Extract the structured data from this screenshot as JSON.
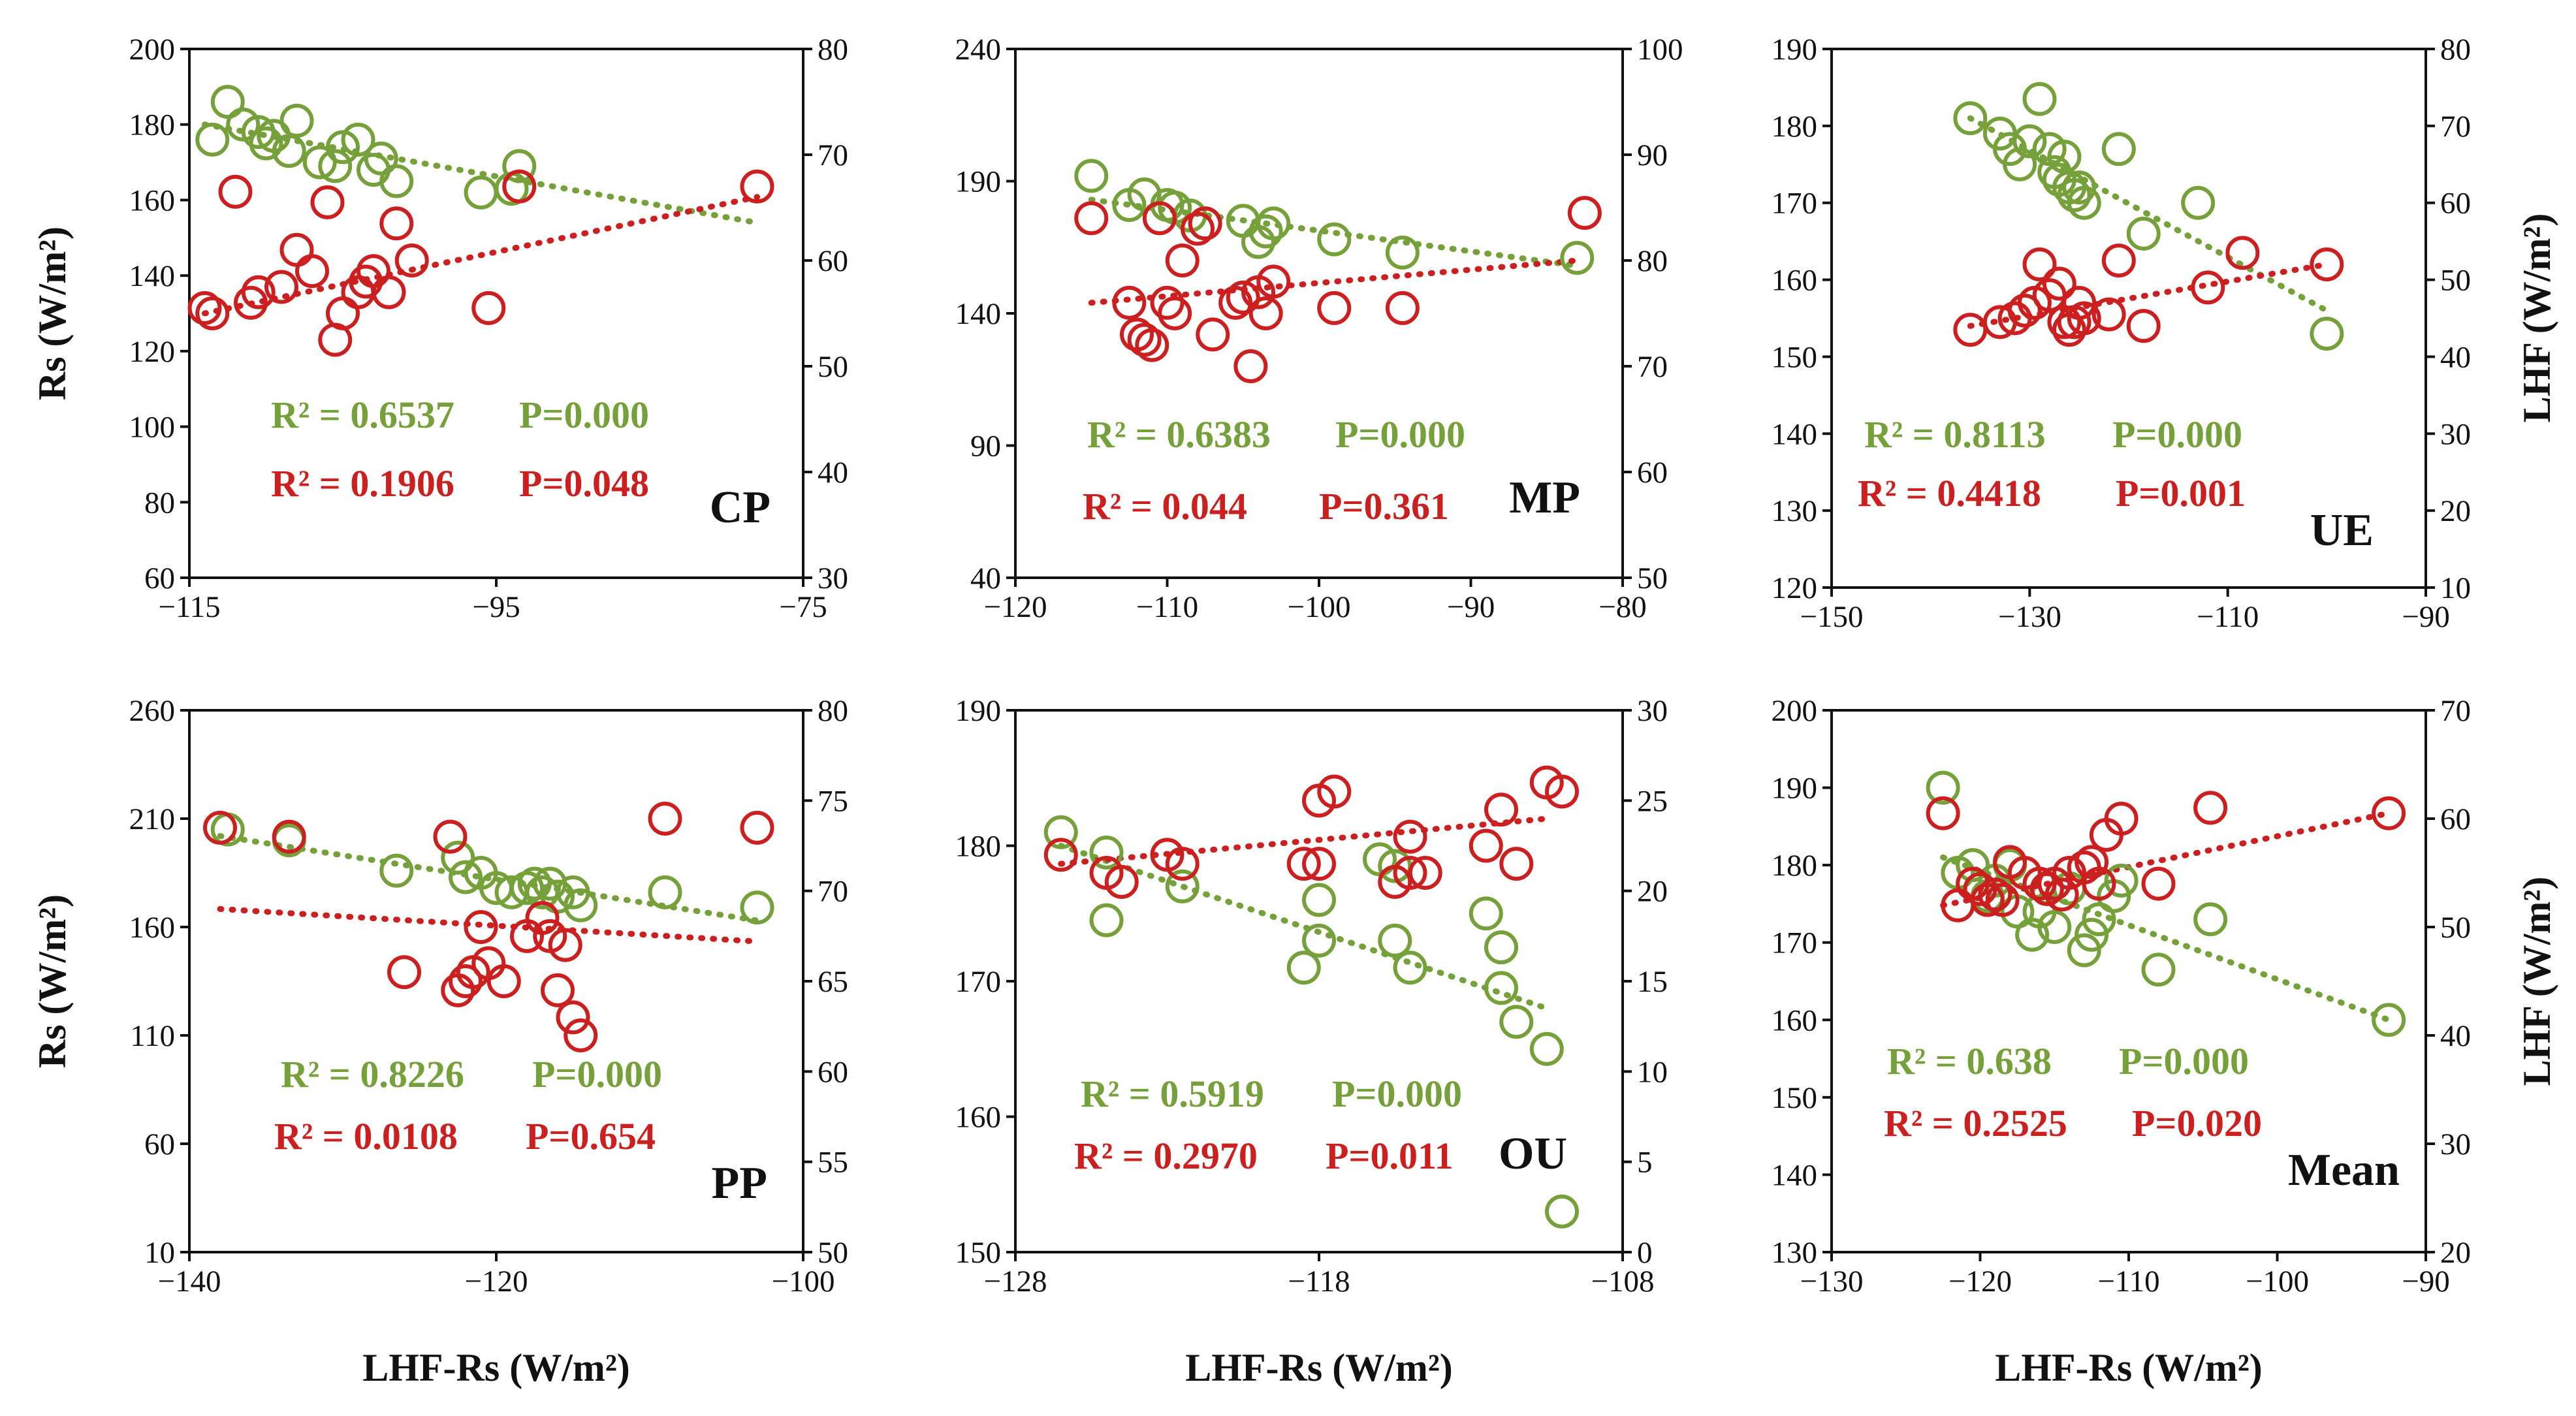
{
  "colors": {
    "green": "#76a039",
    "red": "#cc1f1f",
    "axis": "#111111"
  },
  "axis_titles": {
    "left_y": "Rs (W/m²)",
    "right_y": "LHF (W/m²)",
    "x": "LHF-Rs (W/m²)"
  },
  "chart_data": [
    {
      "type": "scatter",
      "title": "CP",
      "xlabel": "",
      "ylabel": "Rs (W/m²)",
      "y2label": "",
      "xlim": [
        -115,
        -75
      ],
      "xticks": [
        -115,
        -95,
        -75
      ],
      "ylim": [
        60,
        200
      ],
      "yticks": [
        60,
        80,
        100,
        120,
        140,
        160,
        180,
        200
      ],
      "y2lim": [
        30,
        80
      ],
      "y2ticks": [
        30,
        40,
        50,
        60,
        70,
        80
      ],
      "series": [
        {
          "name": "Rs",
          "axis": "left",
          "x": [
            -113.5,
            -112.5,
            -111.5,
            -110.5,
            -109.5,
            -108,
            -106.5,
            -105.5,
            -105,
            -104,
            -102.5,
            -101.5,
            -110,
            -108.5,
            -103,
            -93.5,
            -94,
            -96
          ],
          "y": [
            176,
            186,
            180,
            178,
            177,
            181,
            170,
            169,
            174,
            176,
            171,
            165,
            175,
            173,
            168,
            169,
            163,
            162
          ]
        },
        {
          "name": "LHF",
          "axis": "right",
          "x": [
            -113.5,
            -114,
            -112,
            -111,
            -110.5,
            -109,
            -108,
            -107,
            -106,
            -105.5,
            -105,
            -104,
            -103.5,
            -103,
            -102,
            -101.5,
            -100.5,
            -95.5,
            -93.5,
            -78
          ],
          "y": [
            55,
            55.5,
            66.5,
            56,
            57,
            57.5,
            61,
            59,
            65.5,
            52.5,
            55,
            57,
            58,
            59,
            57,
            63.5,
            60,
            55.5,
            67,
            67
          ]
        }
      ],
      "trendlines": [
        {
          "axis": "left",
          "x": [
            -114,
            -78
          ],
          "y": [
            180,
            154
          ]
        },
        {
          "axis": "right",
          "x": [
            -114,
            -78
          ],
          "y": [
            55,
            66
          ]
        }
      ],
      "annotations": {
        "rs_r2": "R² = 0.6537",
        "rs_p": "P=0.000",
        "lhf_r2": "R² = 0.1906",
        "lhf_p": "P=0.048"
      }
    },
    {
      "type": "scatter",
      "title": "MP",
      "xlabel": "",
      "ylabel": "",
      "y2label": "",
      "xlim": [
        -120,
        -80
      ],
      "xticks": [
        -120,
        -110,
        -100,
        -90,
        -80
      ],
      "ylim": [
        40,
        240
      ],
      "yticks": [
        40,
        90,
        140,
        190,
        240
      ],
      "y2lim": [
        50,
        100
      ],
      "y2ticks": [
        50,
        60,
        70,
        80,
        90,
        100
      ],
      "series": [
        {
          "name": "Rs",
          "axis": "left",
          "x": [
            -115,
            -112.5,
            -111.5,
            -110,
            -109.5,
            -108.5,
            -107.5,
            -105,
            -104,
            -103.5,
            -103,
            -99,
            -94.5,
            -83
          ],
          "y": [
            192,
            181,
            185,
            181,
            180,
            177,
            174,
            175,
            167,
            171,
            174,
            168,
            163,
            161
          ]
        },
        {
          "name": "LHF",
          "axis": "right",
          "x": [
            -115,
            -112.5,
            -112,
            -111.5,
            -111,
            -110.5,
            -110,
            -109.5,
            -109,
            -108,
            -107.5,
            -107,
            -105.5,
            -105,
            -104.5,
            -104,
            -103.5,
            -103,
            -99,
            -94.5,
            -82.5
          ],
          "y": [
            84,
            76,
            73,
            72.5,
            72,
            84,
            76,
            75,
            80,
            83,
            83.5,
            73,
            76,
            76.5,
            70,
            77,
            75,
            78,
            75.5,
            75.5,
            84.5
          ]
        }
      ],
      "trendlines": [
        {
          "axis": "left",
          "x": [
            -115,
            -83
          ],
          "y": [
            183,
            158
          ]
        },
        {
          "axis": "right",
          "x": [
            -115,
            -83
          ],
          "y": [
            76,
            80
          ]
        }
      ],
      "annotations": {
        "rs_r2": "R² = 0.6383",
        "rs_p": "P=0.000",
        "lhf_r2": "R² = 0.044",
        "lhf_p": "P=0.361"
      }
    },
    {
      "type": "scatter",
      "title": "UE",
      "xlabel": "",
      "ylabel": "",
      "y2label": "LHF (W/m²)",
      "xlim": [
        -150,
        -90
      ],
      "xticks": [
        -150,
        -130,
        -110,
        -90
      ],
      "ylim": [
        120,
        190
      ],
      "yticks": [
        120,
        130,
        140,
        150,
        160,
        170,
        180,
        190
      ],
      "y2lim": [
        10,
        80
      ],
      "y2ticks": [
        10,
        20,
        30,
        40,
        50,
        60,
        70,
        80
      ],
      "series": [
        {
          "name": "Rs",
          "axis": "left",
          "x": [
            -136,
            -133,
            -132,
            -131,
            -130,
            -129,
            -128,
            -127.5,
            -127,
            -126.5,
            -126,
            -125.5,
            -125,
            -124.5,
            -121,
            -118.5,
            -113,
            -100
          ],
          "y": [
            181,
            179,
            177,
            175,
            178,
            183.5,
            177,
            174,
            173,
            176,
            172,
            171,
            172,
            170,
            177,
            166,
            170,
            153
          ]
        },
        {
          "name": "LHF",
          "axis": "right",
          "x": [
            -136,
            -133,
            -131.5,
            -130.5,
            -129.5,
            -129,
            -128,
            -127,
            -126.5,
            -126,
            -125.5,
            -125,
            -124.5,
            -122,
            -121,
            -118.5,
            -112,
            -108.5,
            -100
          ],
          "y": [
            43.5,
            44.5,
            45,
            46,
            47,
            52,
            48,
            49.5,
            44.5,
            43.5,
            44.5,
            47,
            45,
            45.5,
            52.5,
            44,
            49,
            53.5,
            52
          ]
        }
      ],
      "trendlines": [
        {
          "axis": "left",
          "x": [
            -136,
            -100
          ],
          "y": [
            181,
            156
          ]
        },
        {
          "axis": "right",
          "x": [
            -136,
            -100
          ],
          "y": [
            44,
            52
          ]
        }
      ],
      "annotations": {
        "rs_r2": "R² = 0.8113",
        "rs_p": "P=0.000",
        "lhf_r2": "R² = 0.4418",
        "lhf_p": "P=0.001"
      }
    },
    {
      "type": "scatter",
      "title": "PP",
      "xlabel": "LHF-Rs (W/m²)",
      "ylabel": "Rs (W/m²)",
      "y2label": "",
      "xlim": [
        -140,
        -100
      ],
      "xticks": [
        -140,
        -120,
        -100
      ],
      "ylim": [
        10,
        260
      ],
      "yticks": [
        10,
        60,
        110,
        160,
        210,
        260
      ],
      "y2lim": [
        50,
        80
      ],
      "y2ticks": [
        50,
        55,
        60,
        65,
        70,
        75,
        80
      ],
      "series": [
        {
          "name": "Rs",
          "axis": "left",
          "x": [
            -137.5,
            -133.5,
            -126.5,
            -122.5,
            -122,
            -121,
            -120,
            -119,
            -118,
            -117.5,
            -117,
            -116.5,
            -116,
            -115,
            -114.5,
            -109,
            -103
          ],
          "y": [
            205,
            200,
            186,
            192,
            183,
            185,
            178,
            176,
            178,
            180,
            176,
            180,
            174,
            176,
            170,
            176,
            169
          ]
        },
        {
          "name": "LHF",
          "axis": "right",
          "x": [
            -138,
            -133.5,
            -126,
            -123,
            -122.5,
            -122,
            -121.5,
            -121,
            -120.5,
            -119.5,
            -118,
            -117,
            -116.5,
            -116,
            -115.5,
            -115,
            -114.5,
            -109,
            -103
          ],
          "y": [
            73.5,
            73,
            65.5,
            73,
            64.5,
            65,
            65.5,
            68,
            66,
            65,
            67.5,
            68.5,
            67.5,
            64.5,
            67,
            63,
            62,
            74,
            73.5
          ]
        }
      ],
      "trendlines": [
        {
          "axis": "left",
          "x": [
            -138,
            -103
          ],
          "y": [
            202,
            163
          ]
        },
        {
          "axis": "right",
          "x": [
            -138,
            -103
          ],
          "y": [
            69,
            67.2
          ]
        }
      ],
      "annotations": {
        "rs_r2": "R² = 0.8226",
        "rs_p": "P=0.000",
        "lhf_r2": "R² = 0.0108",
        "lhf_p": "P=0.654"
      }
    },
    {
      "type": "scatter",
      "title": "OU",
      "xlabel": "LHF-Rs (W/m²)",
      "ylabel": "",
      "y2label": "",
      "xlim": [
        -128,
        -108
      ],
      "xticks": [
        -128,
        -118,
        -108
      ],
      "ylim": [
        150,
        190
      ],
      "yticks": [
        150,
        160,
        170,
        180,
        190
      ],
      "y2lim": [
        0,
        30
      ],
      "y2ticks": [
        0,
        5,
        10,
        15,
        20,
        25,
        30
      ],
      "series": [
        {
          "name": "Rs",
          "axis": "left",
          "x": [
            -126.5,
            -125,
            -125,
            -122.5,
            -118.5,
            -118,
            -118,
            -116,
            -115.5,
            -115.5,
            -115,
            -112.5,
            -112,
            -112,
            -111.5,
            -110.5,
            -110
          ],
          "y": [
            181,
            179.5,
            174.5,
            177,
            171,
            176,
            173,
            179,
            178.5,
            173,
            171,
            175,
            169.5,
            172.5,
            167,
            165,
            153
          ]
        },
        {
          "name": "LHF",
          "axis": "right",
          "x": [
            -126.5,
            -125,
            -124.5,
            -123,
            -122.5,
            -118.5,
            -118,
            -117.5,
            -118,
            -115.5,
            -115,
            -115,
            -114.5,
            -112.5,
            -112,
            -111.5,
            -110.5,
            -110
          ],
          "y": [
            22,
            21,
            20.5,
            22,
            21.5,
            21.5,
            21.5,
            25.5,
            25,
            20.5,
            23,
            21,
            21,
            22.5,
            24.5,
            21.5,
            26,
            25.5
          ]
        }
      ],
      "trendlines": [
        {
          "axis": "left",
          "x": [
            -126.5,
            -110.5
          ],
          "y": [
            180,
            168
          ]
        },
        {
          "axis": "right",
          "x": [
            -126.5,
            -110.5
          ],
          "y": [
            21.5,
            24
          ]
        }
      ],
      "annotations": {
        "rs_r2": "R² = 0.5919",
        "rs_p": "P=0.000",
        "lhf_r2": "R² = 0.2970",
        "lhf_p": "P=0.011"
      }
    },
    {
      "type": "scatter",
      "title": "Mean",
      "xlabel": "LHF-Rs (W/m²)",
      "ylabel": "",
      "y2label": "LHF (W/m²)",
      "xlim": [
        -130,
        -90
      ],
      "xticks": [
        -130,
        -120,
        -110,
        -100,
        -90
      ],
      "ylim": [
        130,
        200
      ],
      "yticks": [
        130,
        140,
        150,
        160,
        170,
        180,
        190,
        200
      ],
      "y2lim": [
        20,
        70
      ],
      "y2ticks": [
        20,
        30,
        40,
        50,
        60,
        70
      ],
      "series": [
        {
          "name": "Rs",
          "axis": "left",
          "x": [
            -122.5,
            -121.5,
            -120.5,
            -119.5,
            -119,
            -118,
            -117.5,
            -116.5,
            -116,
            -115.5,
            -115,
            -114,
            -113,
            -112.5,
            -112,
            -111,
            -110.5,
            -108,
            -104.5,
            -92.5
          ],
          "y": [
            190,
            179,
            180,
            176,
            178,
            180,
            174,
            171,
            174,
            177,
            172,
            177,
            169,
            171,
            173,
            176,
            178,
            166.5,
            173,
            160
          ]
        },
        {
          "name": "LHF",
          "axis": "right",
          "x": [
            -122.5,
            -121.5,
            -120.5,
            -120,
            -119.5,
            -119,
            -118.5,
            -118,
            -117,
            -116,
            -115.5,
            -115,
            -114.5,
            -114,
            -113,
            -112.5,
            -112,
            -111.5,
            -110.5,
            -108,
            -104.5,
            -92.5
          ],
          "y": [
            60.5,
            52,
            54,
            53.5,
            52.5,
            53,
            52.5,
            56,
            55,
            54,
            53.5,
            54,
            53,
            55,
            55.5,
            56,
            54,
            58.5,
            60,
            54,
            61,
            60.5
          ]
        }
      ],
      "trendlines": [
        {
          "axis": "left",
          "x": [
            -122.5,
            -92.5
          ],
          "y": [
            181,
            160
          ]
        },
        {
          "axis": "right",
          "x": [
            -122.5,
            -92.5
          ],
          "y": [
            52,
            60.5
          ]
        }
      ],
      "annotations": {
        "rs_r2": "R² = 0.638",
        "rs_p": "P=0.000",
        "lhf_r2": "R² = 0.2525",
        "lhf_p": "P=0.020"
      }
    }
  ]
}
